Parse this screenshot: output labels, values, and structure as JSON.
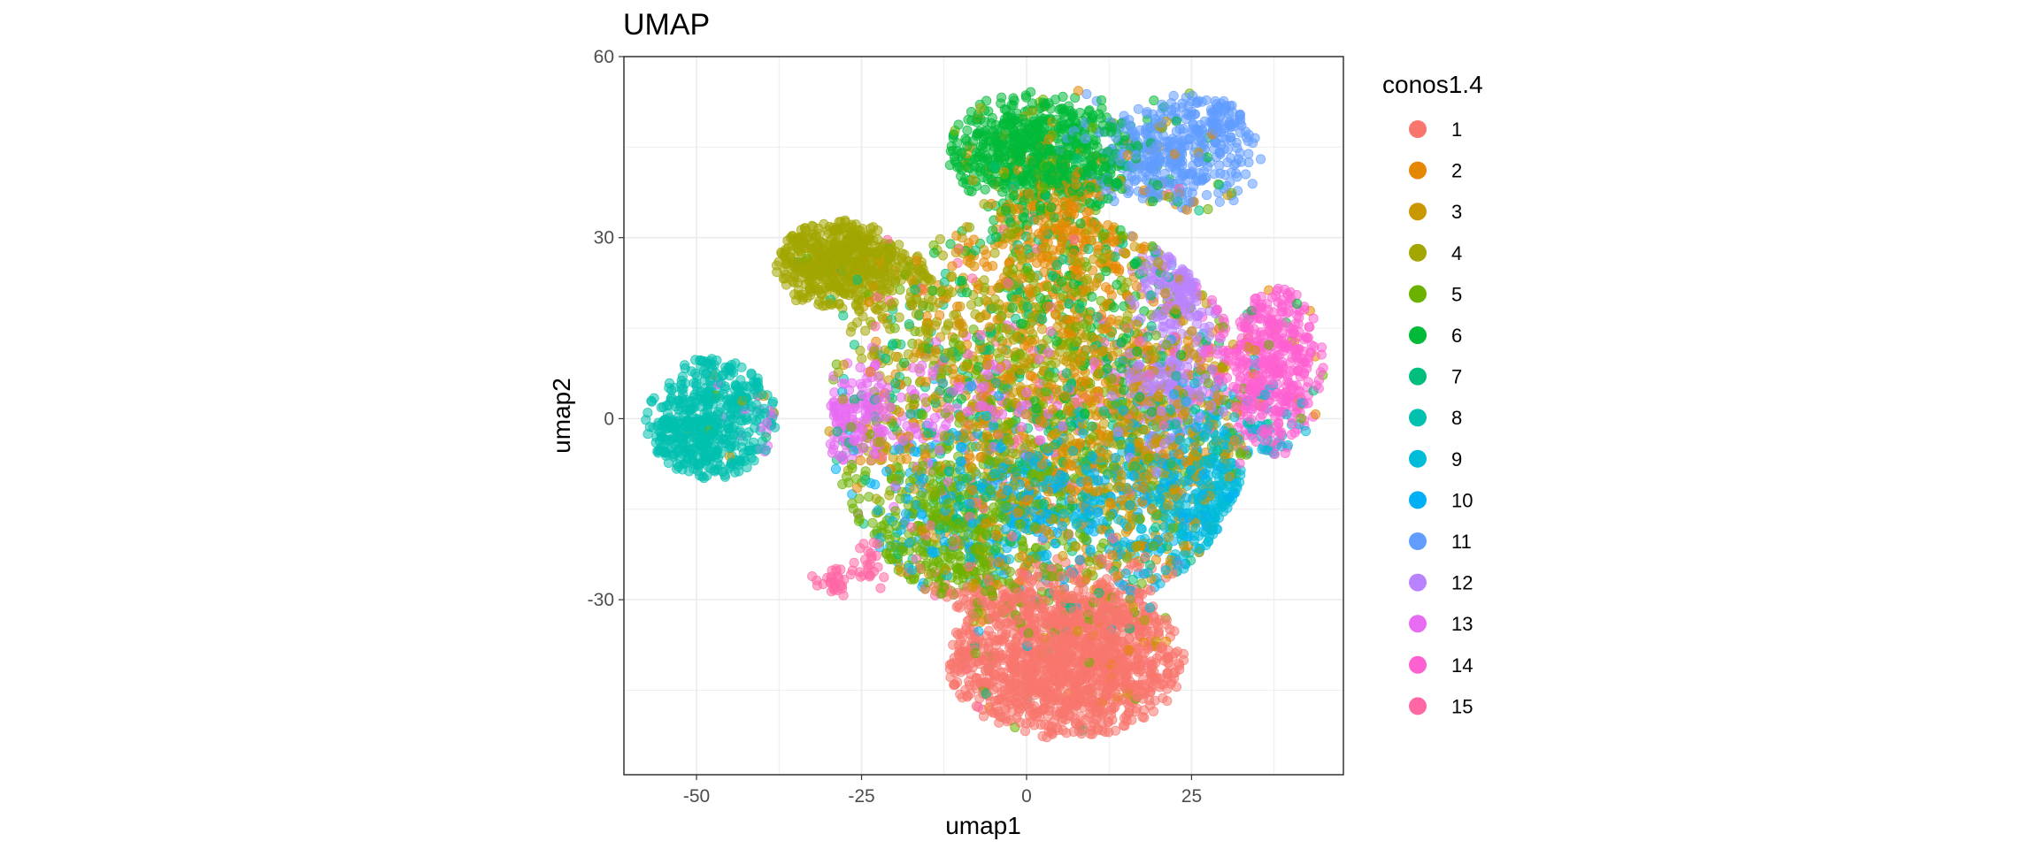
{
  "chart_data": {
    "type": "scatter",
    "title": "UMAP",
    "xlabel": "umap1",
    "ylabel": "umap2",
    "xlim": [
      -61,
      48
    ],
    "ylim": [
      -59,
      60
    ],
    "x_ticks": [
      -50,
      -25,
      0,
      25
    ],
    "y_ticks": [
      -30,
      0,
      30,
      60
    ],
    "grid": true,
    "legend": {
      "title": "conos1.4",
      "position": "right",
      "entries": [
        "1",
        "2",
        "3",
        "4",
        "5",
        "6",
        "7",
        "8",
        "9",
        "10",
        "11",
        "12",
        "13",
        "14",
        "15"
      ]
    },
    "colors": [
      "#F8766D",
      "#E58700",
      "#C99800",
      "#A3A500",
      "#6BB100",
      "#00BA38",
      "#00BF7D",
      "#00C0AF",
      "#00BCD8",
      "#00B0F6",
      "#619CFF",
      "#B983FF",
      "#E76BF3",
      "#FD61D1",
      "#FF67A4"
    ],
    "point_alpha": 0.55,
    "series": [
      {
        "name": "1",
        "clusters": [
          {
            "cx": 6,
            "cy": -41,
            "sx": 11,
            "sy": 7,
            "n": 1300
          },
          {
            "cx": 5,
            "cy": -31,
            "sx": 14,
            "sy": 4,
            "n": 250
          }
        ]
      },
      {
        "name": "2",
        "clusters": [
          {
            "cx": 6,
            "cy": 32,
            "sx": 6,
            "sy": 6,
            "n": 220
          },
          {
            "cx": 5,
            "cy": 3,
            "sx": 17,
            "sy": 20,
            "n": 500
          }
        ]
      },
      {
        "name": "3",
        "clusters": [
          {
            "cx": 18,
            "cy": -6,
            "sx": 8,
            "sy": 9,
            "n": 350
          },
          {
            "cx": 2,
            "cy": 10,
            "sx": 17,
            "sy": 20,
            "n": 380
          }
        ]
      },
      {
        "name": "4",
        "clusters": [
          {
            "cx": -28,
            "cy": 26,
            "sx": 6,
            "sy": 4,
            "n": 550
          },
          {
            "cx": -10,
            "cy": 10,
            "sx": 14,
            "sy": 16,
            "n": 300
          }
        ]
      },
      {
        "name": "5",
        "clusters": [
          {
            "cx": -12,
            "cy": -20,
            "sx": 8,
            "sy": 8,
            "n": 350
          },
          {
            "cx": 3,
            "cy": 3,
            "sx": 18,
            "sy": 22,
            "n": 500
          }
        ]
      },
      {
        "name": "6",
        "clusters": [
          {
            "cx": 2,
            "cy": 44,
            "sx": 8,
            "sy": 5,
            "n": 650
          },
          {
            "cx": 8,
            "cy": 20,
            "sx": 10,
            "sy": 12,
            "n": 150
          }
        ]
      },
      {
        "name": "7",
        "clusters": [
          {
            "cx": 0,
            "cy": 0,
            "sx": 18,
            "sy": 20,
            "n": 350
          }
        ]
      },
      {
        "name": "8",
        "clusters": [
          {
            "cx": -51,
            "cy": -2,
            "sx": 4,
            "sy": 5,
            "n": 300
          },
          {
            "cx": -43,
            "cy": 6,
            "sx": 5,
            "sy": 8,
            "n": 200
          }
        ]
      },
      {
        "name": "9",
        "clusters": [
          {
            "cx": 30,
            "cy": -15,
            "sx": 6,
            "sy": 10,
            "n": 300
          },
          {
            "cx": 8,
            "cy": -15,
            "sx": 14,
            "sy": 8,
            "n": 150
          }
        ]
      },
      {
        "name": "10",
        "clusters": [
          {
            "cx": -4,
            "cy": -14,
            "sx": 10,
            "sy": 7,
            "n": 280
          },
          {
            "cx": 22,
            "cy": -12,
            "sx": 6,
            "sy": 8,
            "n": 150
          }
        ]
      },
      {
        "name": "11",
        "clusters": [
          {
            "cx": 22,
            "cy": 44,
            "sx": 6,
            "sy": 6,
            "n": 380
          },
          {
            "cx": 30,
            "cy": 50,
            "sx": 2,
            "sy": 3,
            "n": 60
          }
        ]
      },
      {
        "name": "12",
        "clusters": [
          {
            "cx": 23,
            "cy": 22,
            "sx": 3,
            "sy": 4,
            "n": 150
          },
          {
            "cx": 22,
            "cy": 5,
            "sx": 4,
            "sy": 5,
            "n": 200
          }
        ]
      },
      {
        "name": "13",
        "clusters": [
          {
            "cx": -28,
            "cy": 0,
            "sx": 6,
            "sy": 4,
            "n": 180
          },
          {
            "cx": -8,
            "cy": 3,
            "sx": 9,
            "sy": 6,
            "n": 120
          }
        ]
      },
      {
        "name": "14",
        "clusters": [
          {
            "cx": 38,
            "cy": 9,
            "sx": 4,
            "sy": 9,
            "n": 350
          },
          {
            "cx": 32,
            "cy": 12,
            "sx": 4,
            "sy": 8,
            "n": 100
          }
        ]
      },
      {
        "name": "15",
        "clusters": [
          {
            "cx": -29,
            "cy": -27,
            "sx": 1.2,
            "sy": 1.2,
            "n": 30
          },
          {
            "cx": -24,
            "cy": -24,
            "sx": 2,
            "sy": 2,
            "n": 25
          },
          {
            "cx": 0,
            "cy": 0,
            "sx": 15,
            "sy": 18,
            "n": 100
          }
        ]
      }
    ]
  }
}
